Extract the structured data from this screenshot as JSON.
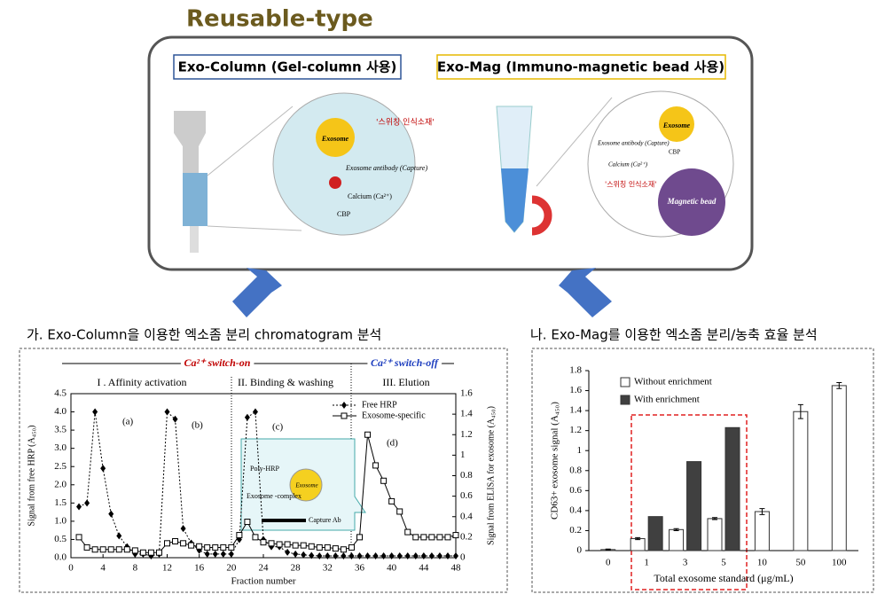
{
  "header": {
    "title": "Reusable-type"
  },
  "diagram": {
    "column_label": "Exo-Column (Gel-column 사용)",
    "mag_label": "Exo-Mag (Immuno-magnetic bead 사용)",
    "column_detail": {
      "exosome": "Exosome",
      "switch": "'스위칭 인식소재'",
      "antibody": "Exosome antibody (Capture)",
      "calcium": "Calcium (Ca²⁺)",
      "cbp": "CBP"
    },
    "mag_detail": {
      "exosome": "Exosome",
      "antibody": "Exosome antibody (Capture)",
      "cbp": "CBP",
      "calcium": "Calcium (Ca²⁺)",
      "switch": "'스위칭 인식소재'",
      "bead": "Magnetic bead"
    }
  },
  "sections": [
    "가. Exo-Column을 이용한 엑소좀 분리 chromatogram 분석",
    "나. Exo-Mag를 이용한 엑소좀 분리/농축 효율 분석"
  ],
  "chart_data": [
    {
      "type": "line",
      "x_label": "Fraction number",
      "y_label": "Signal from free HRP (A₄₅₀)",
      "y2_label": "Signal from ELISA for exosome (A₄₅₀)",
      "x": [
        1,
        2,
        3,
        4,
        5,
        6,
        7,
        8,
        9,
        10,
        11,
        12,
        13,
        14,
        15,
        16,
        17,
        18,
        19,
        20,
        21,
        22,
        23,
        24,
        25,
        26,
        27,
        28,
        29,
        30,
        31,
        32,
        33,
        34,
        35,
        36,
        37,
        38,
        39,
        40,
        41,
        42,
        43,
        44,
        45,
        46,
        47,
        48
      ],
      "xlim": [
        0,
        48
      ],
      "xticks": [
        0,
        4,
        8,
        12,
        16,
        20,
        24,
        28,
        32,
        36,
        40,
        44,
        48
      ],
      "ylim": [
        0,
        4.5
      ],
      "yticks": [
        {
          "value": 0,
          "label": "0.0"
        },
        0.5,
        {
          "value": 1,
          "label": "1.0"
        },
        1.5,
        {
          "value": 2,
          "label": "2.0"
        },
        2.5,
        {
          "value": 3,
          "label": "3.0"
        },
        3.5,
        {
          "value": 4,
          "label": "4.0"
        },
        4.5
      ],
      "y2lim": [
        0,
        1.6
      ],
      "y2ticks": [
        0,
        0.2,
        0.4,
        0.6,
        0.8,
        1,
        1.2,
        1.4,
        1.6
      ],
      "series": [
        {
          "name": "Free HRP",
          "color": "#000000",
          "marker": "diamond",
          "values": [
            1.4,
            1.5,
            4.0,
            2.45,
            1.2,
            0.6,
            0.3,
            0.1,
            0.1,
            0.05,
            0.1,
            4.0,
            3.8,
            0.8,
            0.4,
            0.2,
            0.1,
            0.1,
            0.1,
            0.1,
            0.5,
            3.85,
            4.0,
            0.5,
            0.3,
            0.3,
            0.15,
            0.1,
            0.08,
            0.06,
            0.05,
            0.05,
            0.05,
            0.05,
            0.05,
            0.05,
            0.05,
            0.05,
            0.05,
            0.05,
            0.05,
            0.05,
            0.05,
            0.05,
            0.05,
            0.05,
            0.05,
            0.05
          ]
        },
        {
          "name": "Exosome-specific",
          "color": "#000000",
          "marker": "square",
          "axis": "y2",
          "values": [
            0.2,
            0.1,
            0.08,
            0.08,
            0.08,
            0.08,
            0.08,
            0.07,
            0.05,
            0.05,
            0.05,
            0.14,
            0.16,
            0.14,
            0.12,
            0.11,
            0.1,
            0.1,
            0.1,
            0.1,
            0.22,
            0.35,
            0.2,
            0.15,
            0.14,
            0.13,
            0.13,
            0.12,
            0.12,
            0.11,
            0.1,
            0.1,
            0.09,
            0.08,
            0.1,
            0.2,
            1.2,
            0.9,
            0.75,
            0.55,
            0.45,
            0.25,
            0.2,
            0.2,
            0.2,
            0.2,
            0.2,
            0.22
          ]
        }
      ],
      "annotations": {
        "switch_on": "Ca²⁺ switch-on",
        "switch_off": "Ca²⁺ switch-off",
        "phase1": "I . Affinity activation",
        "phase2": "II. Binding & washing",
        "phase3": "III. Elution",
        "a": "(a)",
        "b": "(b)",
        "c": "(c)",
        "d": "(d)",
        "poly_hrp": "Poly-HRP",
        "complex": "Exosome -complex",
        "exosome": "Exosome",
        "capture": "Capture Ab"
      }
    },
    {
      "type": "bar",
      "x_label": "Total exosome standard (μg/mL)",
      "y_label": "CD63+ exosome signal  (A₄₅₀)",
      "categories": [
        "0",
        "1",
        "3",
        "5",
        "10",
        "50",
        "100"
      ],
      "ylim": [
        0,
        1.8
      ],
      "yticks": [
        0,
        0.2,
        0.4,
        0.6,
        0.8,
        1,
        1.2,
        1.4,
        1.6,
        1.8
      ],
      "legend": "top-left",
      "series": [
        {
          "name": "Without enrichment",
          "color": "#ffffff",
          "values": [
            0.01,
            0.12,
            0.21,
            0.32,
            0.39,
            1.39,
            1.65
          ],
          "errors": [
            0.005,
            0.01,
            0.01,
            0.01,
            0.03,
            0.07,
            0.03
          ]
        },
        {
          "name": "With enrichment",
          "color": "#404040",
          "values": [
            null,
            0.34,
            0.89,
            1.23,
            null,
            null,
            null
          ]
        }
      ]
    }
  ]
}
